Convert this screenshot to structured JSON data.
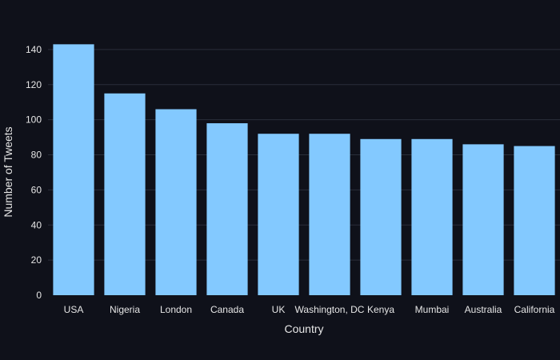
{
  "chart_data": {
    "type": "bar",
    "title": "",
    "xlabel": "Country",
    "ylabel": "Number of Tweets",
    "categories": [
      "USA",
      "Nigeria",
      "London",
      "Canada",
      "UK",
      "Washington, DC",
      "Kenya",
      "Mumbai",
      "Australia",
      "California"
    ],
    "values": [
      143,
      115,
      106,
      98,
      92,
      92,
      89,
      89,
      86,
      85
    ],
    "ylim": [
      0,
      150
    ],
    "yticks": [
      0,
      20,
      40,
      60,
      80,
      100,
      120,
      140
    ],
    "grid": true,
    "legend": "none",
    "colors": {
      "background": "#0f111a",
      "bar": "#83c9ff",
      "grid": "#2a2e3a",
      "text": "#e6e6e6"
    }
  }
}
